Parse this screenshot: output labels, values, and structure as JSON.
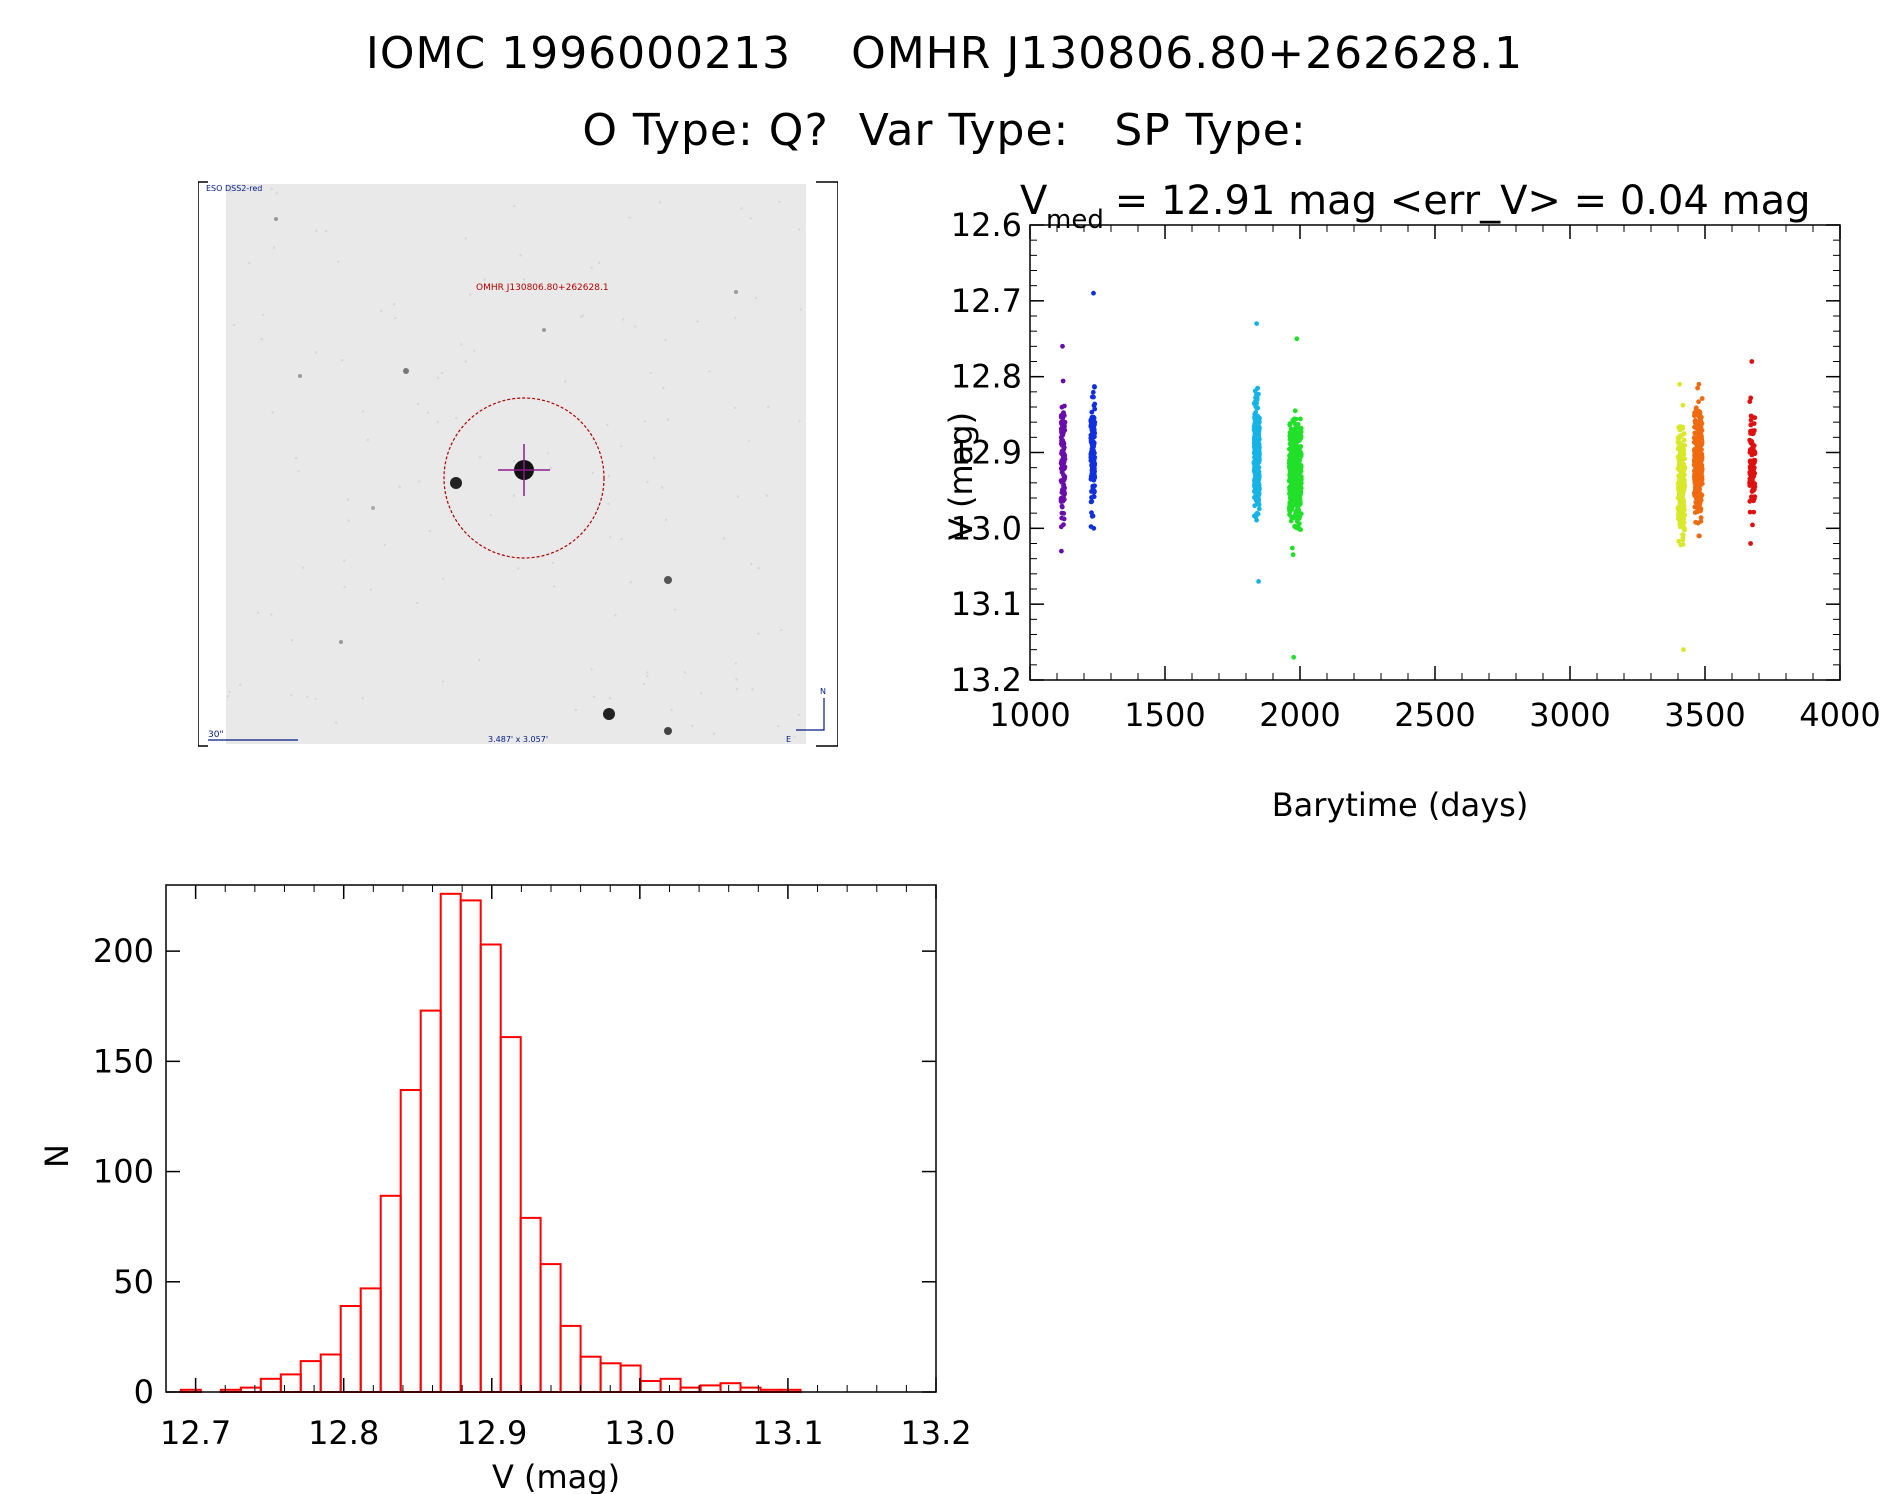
{
  "header": {
    "line1": "IOMC 1996000213    OMHR J130806.80+262628.1",
    "line2": "O Type: Q?  Var Type:   SP Type:"
  },
  "finder": {
    "survey_label": "ESO DSS2-red",
    "object_label": "OMHR J130806.80+262628.1",
    "scale_label": "30\"",
    "size_label": "3.487' x 3.057'",
    "north_label": "N",
    "east_label": "E"
  },
  "chart_data": [
    {
      "type": "scatter",
      "title_main": "V",
      "title_sub": "med",
      "title_rest": " = 12.91 mag <err_V> = 0.04 mag",
      "xlabel": "Barytime (days)",
      "ylabel": "V (mag)",
      "xlim": [
        1000,
        4000
      ],
      "ylim": [
        13.2,
        12.6
      ],
      "y_inverted": true,
      "x_ticks": [
        1000,
        1500,
        2000,
        2500,
        3000,
        3500,
        4000
      ],
      "y_ticks": [
        12.6,
        12.7,
        12.8,
        12.9,
        13.0,
        13.1,
        13.2
      ],
      "y_tick_labels": [
        "12.6",
        "12.7",
        "12.8",
        "12.9",
        "13.0",
        "13.1",
        "13.2"
      ],
      "series": [
        {
          "color": "#6a0dad",
          "x_range": [
            1115,
            1130
          ],
          "y_range": [
            12.76,
            13.03
          ],
          "center": 12.91,
          "n": 120
        },
        {
          "color": "#1030e0",
          "x_range": [
            1225,
            1240
          ],
          "y_range": [
            12.69,
            13.0
          ],
          "center": 12.9,
          "n": 150
        },
        {
          "color": "#16b4e6",
          "x_range": [
            1830,
            1850
          ],
          "y_range": [
            12.73,
            13.07
          ],
          "center": 12.9,
          "n": 300
        },
        {
          "color": "#22e02a",
          "x_range": [
            1960,
            2005
          ],
          "y_range": [
            12.75,
            13.17
          ],
          "center": 12.93,
          "n": 420
        },
        {
          "color": "#d8e82a",
          "x_range": [
            3400,
            3425
          ],
          "y_range": [
            12.81,
            13.16
          ],
          "center": 12.94,
          "n": 260
        },
        {
          "color": "#f06a10",
          "x_range": [
            3460,
            3490
          ],
          "y_range": [
            12.81,
            13.01
          ],
          "center": 12.91,
          "n": 300
        },
        {
          "color": "#e01010",
          "x_range": [
            3665,
            3685
          ],
          "y_range": [
            12.78,
            13.02
          ],
          "center": 12.92,
          "n": 110
        }
      ]
    },
    {
      "type": "bar",
      "xlabel": "V (mag)",
      "ylabel": "N",
      "xlim": [
        12.68,
        13.2
      ],
      "ylim": [
        0,
        230
      ],
      "x_ticks": [
        12.7,
        12.8,
        12.9,
        13.0,
        13.1,
        13.2
      ],
      "x_tick_labels": [
        "12.7",
        "12.8",
        "12.9",
        "13.0",
        "13.1",
        "13.2"
      ],
      "y_ticks": [
        0,
        50,
        100,
        150,
        200
      ],
      "bin_start": 12.69,
      "bin_width": 0.0135,
      "color": "#ff0000",
      "values": [
        1,
        0,
        1,
        2,
        6,
        8,
        14,
        17,
        39,
        47,
        89,
        137,
        173,
        226,
        223,
        203,
        161,
        79,
        58,
        30,
        16,
        13,
        12,
        5,
        6,
        2,
        3,
        4,
        2,
        1,
        1,
        0
      ]
    }
  ]
}
